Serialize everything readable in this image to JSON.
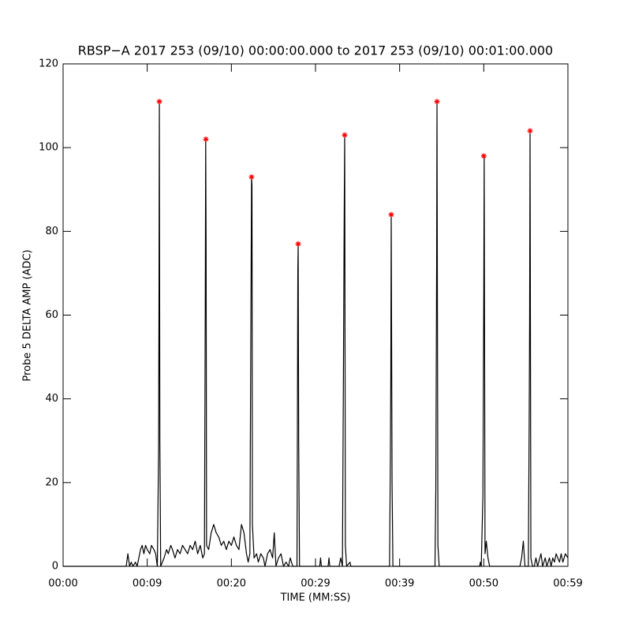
{
  "chart_data": {
    "type": "line",
    "title": "RBSP−A 2017 253 (09/10) 00:00:00.000 to 2017 253 (09/10) 00:01:00.000",
    "x_label": "TIME (MM:SS)",
    "y_label": "Probe 5 DELTA AMP (ADC)",
    "xlim": [
      0,
      60
    ],
    "ylim": [
      0,
      120
    ],
    "xticks": [
      {
        "value": 0,
        "label": "00:00"
      },
      {
        "value": 10,
        "label": "00:09"
      },
      {
        "value": 20,
        "label": "00:20"
      },
      {
        "value": 30,
        "label": "00:29"
      },
      {
        "value": 40,
        "label": "00:39"
      },
      {
        "value": 50,
        "label": "00:50"
      },
      {
        "value": 60,
        "label": "00:59"
      }
    ],
    "yticks": [
      0,
      20,
      40,
      60,
      80,
      100,
      120
    ],
    "series": [
      {
        "color": "#000000",
        "marker": "none",
        "x": [
          0,
          7.5,
          7.7,
          7.9,
          8.1,
          8.3,
          8.6,
          8.8,
          9.0,
          9.2,
          9.4,
          9.6,
          9.8,
          10.0,
          10.3,
          10.5,
          10.8,
          11.0,
          11.2,
          11.35,
          11.4,
          11.44,
          11.5,
          11.6,
          12.0,
          12.3,
          12.5,
          12.8,
          13.0,
          13.3,
          13.6,
          13.9,
          14.2,
          14.5,
          14.8,
          15.1,
          15.4,
          15.7,
          16.0,
          16.3,
          16.6,
          16.8,
          16.9,
          16.95,
          17.0,
          17.05,
          17.3,
          17.6,
          17.9,
          18.2,
          18.5,
          18.8,
          19.1,
          19.4,
          19.7,
          20.0,
          20.3,
          20.6,
          20.9,
          21.2,
          21.5,
          21.8,
          22.0,
          22.2,
          22.3,
          22.4,
          22.45,
          22.5,
          22.7,
          23.0,
          23.2,
          23.5,
          23.8,
          24.0,
          24.3,
          24.6,
          24.9,
          25.1,
          25.3,
          25.6,
          25.9,
          26.2,
          26.5,
          26.8,
          27.0,
          27.3,
          27.8,
          27.85,
          27.9,
          27.94,
          28.0,
          28.1,
          30.5,
          30.6,
          30.7,
          31.5,
          31.6,
          31.7,
          32.8,
          33.0,
          33.2,
          33.35,
          33.4,
          33.47,
          33.55,
          33.7,
          34.1,
          34.2,
          38.8,
          38.9,
          38.95,
          39.0,
          39.1,
          39.2,
          44.2,
          44.3,
          44.4,
          44.44,
          44.55,
          44.7,
          49.5,
          49.6,
          49.7,
          49.9,
          50.0,
          50.05,
          50.15,
          50.3,
          50.5,
          50.7,
          54.3,
          54.5,
          54.7,
          54.9,
          55.3,
          55.4,
          55.45,
          55.5,
          55.6,
          55.8,
          56.0,
          56.2,
          56.4,
          56.8,
          57.0,
          57.3,
          57.5,
          57.8,
          58.0,
          58.2,
          58.4,
          58.6,
          58.8,
          59.0,
          59.2,
          59.4,
          59.7,
          60
        ],
        "values": [
          0,
          0,
          3,
          0,
          1,
          0,
          1,
          0,
          2,
          4,
          5,
          3,
          5,
          4,
          3,
          5,
          4,
          3,
          0,
          28,
          66,
          111,
          30,
          0,
          2,
          4,
          3,
          5,
          4,
          2,
          4,
          3,
          5,
          4,
          3,
          5,
          4,
          6,
          3,
          5,
          2,
          3,
          64,
          102,
          76,
          5,
          4,
          8,
          10,
          8,
          7,
          5,
          6,
          4,
          6,
          5,
          7,
          5,
          4,
          10,
          8,
          3,
          1,
          3,
          50,
          93,
          91,
          10,
          2,
          3,
          1,
          3,
          2,
          0,
          3,
          4,
          2,
          8,
          0,
          2,
          3,
          0,
          1,
          0,
          2,
          0,
          0,
          34,
          71,
          77,
          30,
          0,
          0,
          2,
          0,
          0,
          2,
          0,
          0,
          2,
          0,
          58,
          80,
          103,
          5,
          0,
          1,
          0,
          0,
          26,
          45,
          84,
          20,
          0,
          0,
          18,
          73,
          111,
          5,
          0,
          0,
          1,
          0,
          17,
          65,
          98,
          3,
          6,
          2,
          0,
          0,
          2,
          6,
          0,
          0,
          35,
          59,
          104,
          2,
          0,
          0,
          2,
          0,
          3,
          0,
          2,
          0,
          2,
          0,
          2,
          1,
          3,
          2,
          1,
          3,
          1,
          3,
          2
        ]
      },
      {
        "color": "#ff0000",
        "marker": "star",
        "x": [
          11.44,
          16.97,
          22.4,
          27.94,
          33.47,
          39.0,
          44.44,
          50.0,
          55.5
        ],
        "values": [
          111,
          102,
          93,
          77,
          103,
          84,
          111,
          98,
          104
        ]
      }
    ]
  }
}
